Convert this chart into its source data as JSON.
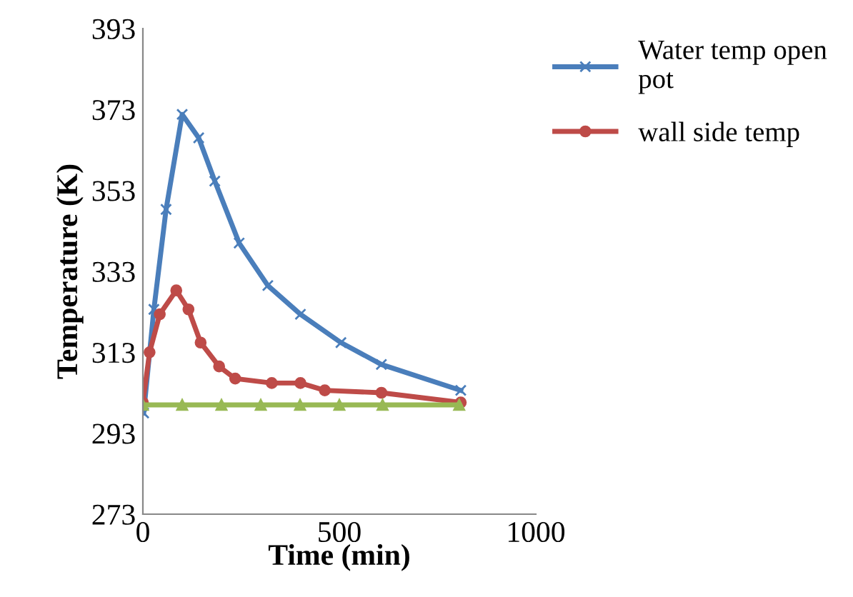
{
  "chart_data": {
    "type": "line",
    "xlabel": "Time (min)",
    "ylabel": "Temperature (K)",
    "xlim": [
      0,
      1000
    ],
    "xticks": [
      0,
      500,
      1000
    ],
    "ylim": [
      273,
      393
    ],
    "yticks": [
      273,
      293,
      313,
      333,
      353,
      373,
      393
    ],
    "grid": false,
    "legend": "top right",
    "series": [
      {
        "name": "Water temp open pot",
        "color": "#4a7ebb",
        "marker": "cross",
        "x": [
          2,
          28,
          59,
          100,
          142,
          183,
          245,
          318,
          401,
          504,
          607,
          809
        ],
        "values": [
          298,
          323.6,
          348.3,
          371.8,
          366,
          355.3,
          340,
          329.5,
          322.4,
          315.4,
          310,
          303.6
        ]
      },
      {
        "name": "wall side temp",
        "color": "#be4b48",
        "marker": "circle",
        "x": [
          0,
          17,
          43,
          85,
          116,
          147,
          194,
          235,
          328,
          401,
          463,
          607,
          809
        ],
        "values": [
          300.6,
          313,
          322.4,
          328.3,
          323.6,
          315.4,
          309.5,
          306.5,
          305.4,
          305.4,
          303.6,
          303,
          300.6
        ]
      },
      {
        "color": "#98b954",
        "marker": "triangle",
        "x": [
          0,
          100,
          200,
          300,
          400,
          500,
          610,
          805
        ],
        "values": [
          300,
          300,
          300,
          300,
          300,
          300,
          300,
          300
        ]
      }
    ]
  }
}
